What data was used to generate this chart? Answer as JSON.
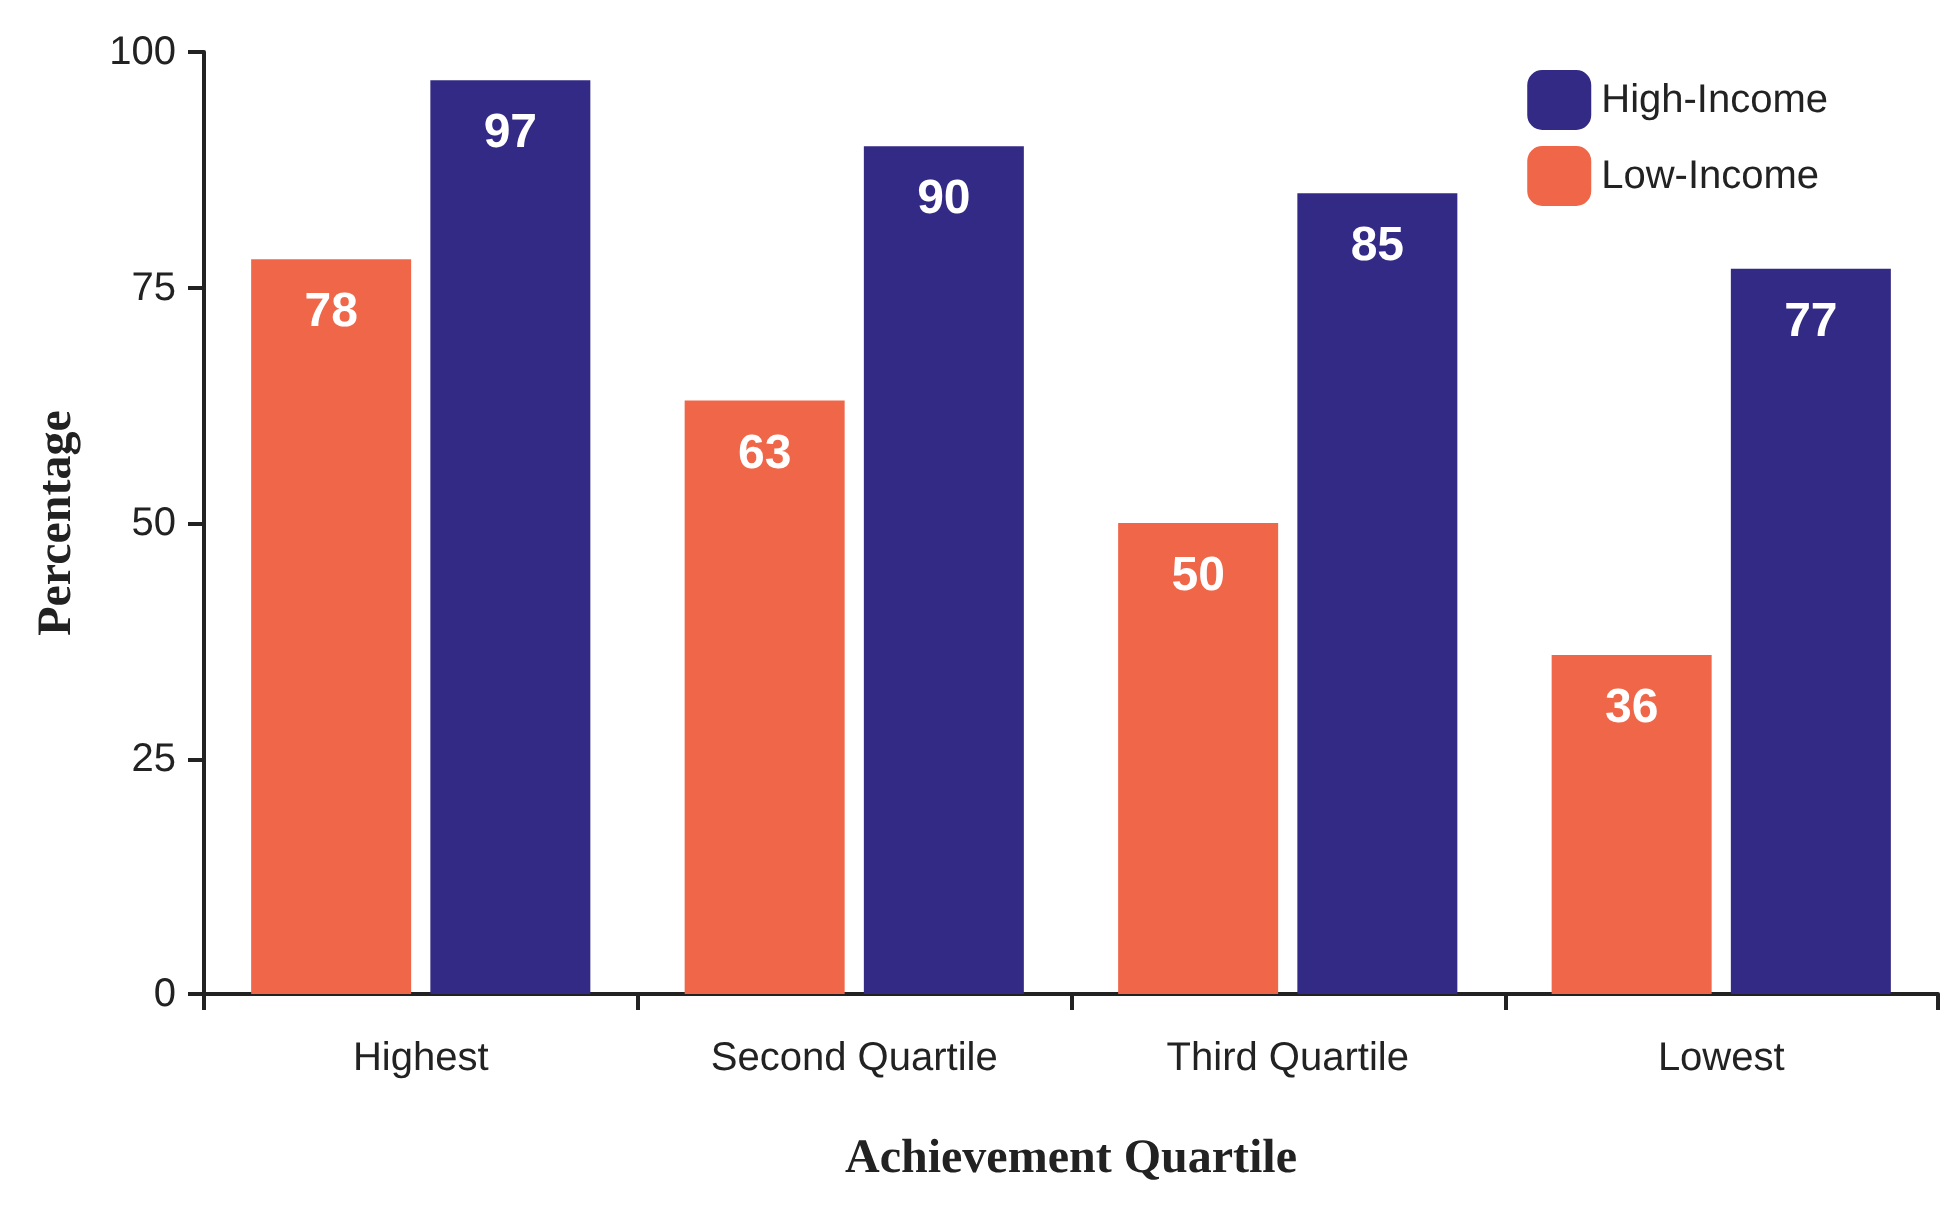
{
  "chart_data": {
    "type": "bar",
    "xlabel": "Achievement Quartile",
    "ylabel": "Percentage",
    "categories": [
      "Highest",
      "Second Quartile",
      "Third Quartile",
      "Lowest"
    ],
    "series": [
      {
        "name": "Low-Income",
        "color": "#f06648",
        "values": [
          78,
          63,
          50,
          36
        ]
      },
      {
        "name": "High-Income",
        "color": "#332a85",
        "values": [
          97,
          90,
          85,
          77
        ]
      }
    ],
    "ylim": [
      0,
      100
    ],
    "yticks": [
      0,
      25,
      50,
      75,
      100
    ],
    "grid": false,
    "legend": "top right",
    "data_labels": true
  }
}
